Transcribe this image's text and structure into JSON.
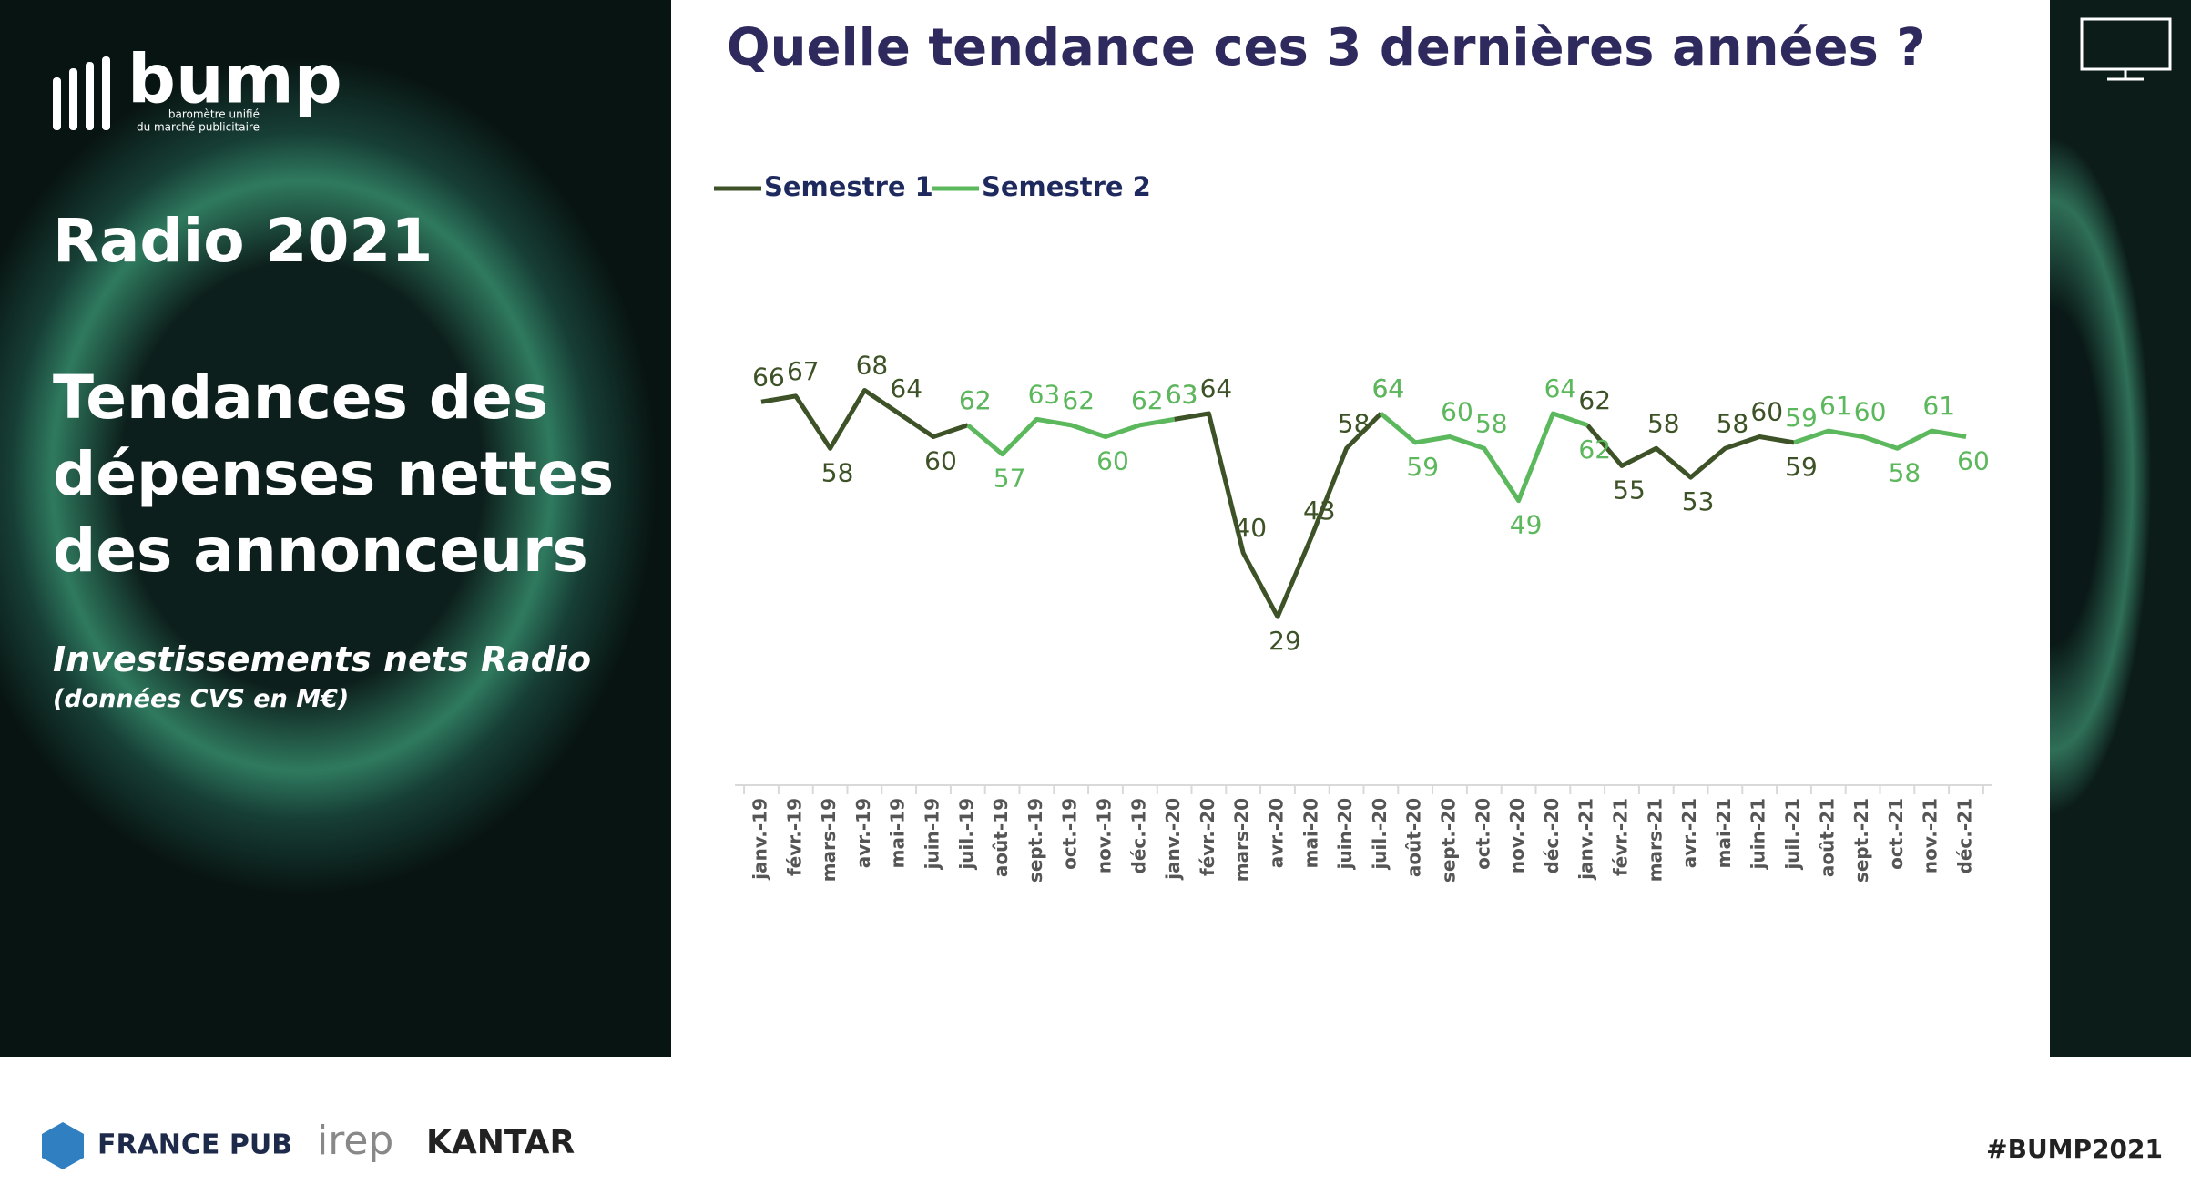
{
  "sidebar": {
    "logo": "bump",
    "logo_tagline": [
      "baromètre unifié",
      "du marché publicitaire"
    ],
    "heading": "Radio 2021",
    "title_lines": [
      "Tendances des",
      "dépenses nettes",
      "des annonceurs"
    ],
    "subtitle": "Investissements nets Radio",
    "note": "(données CVS en M€)"
  },
  "footer": {
    "logos": [
      "FRANCE PUB",
      "irep",
      "KANTAR"
    ],
    "hashtag": "#BUMP2021"
  },
  "chart_data": {
    "type": "line",
    "title": "Quelle tendance ces 3 dernières années ?",
    "categories": [
      "janv.-19",
      "févr.-19",
      "mars-19",
      "avr.-19",
      "mai-19",
      "juin-19",
      "juil.-19",
      "août-19",
      "sept.-19",
      "oct.-19",
      "nov.-19",
      "déc.-19",
      "janv.-20",
      "févr.-20",
      "mars-20",
      "avr.-20",
      "mai-20",
      "juin-20",
      "juil.-20",
      "août-20",
      "sept.-20",
      "oct.-20",
      "nov.-20",
      "déc.-20",
      "janv.-21",
      "févr.-21",
      "mars-21",
      "avr.-21",
      "mai-21",
      "juin-21",
      "juil.-21",
      "août-21",
      "sept.-21",
      "oct.-21",
      "nov.-21",
      "déc.-21"
    ],
    "series": [
      {
        "name": "Semestre 1",
        "color": "#3d5226",
        "values": [
          66,
          67,
          58,
          68,
          64,
          60,
          62,
          null,
          null,
          null,
          null,
          null,
          63,
          64,
          40,
          29,
          43,
          58,
          64,
          null,
          null,
          null,
          null,
          null,
          62,
          55,
          58,
          53,
          58,
          60,
          59,
          null,
          null,
          null,
          null,
          null
        ]
      },
      {
        "name": "Semestre 2",
        "color": "#5cb85c",
        "values": [
          null,
          null,
          null,
          null,
          null,
          null,
          62,
          57,
          63,
          62,
          60,
          62,
          63,
          null,
          null,
          null,
          null,
          null,
          64,
          59,
          60,
          58,
          49,
          64,
          62,
          null,
          null,
          null,
          null,
          null,
          59,
          61,
          60,
          58,
          61,
          60
        ]
      }
    ],
    "ylim": [
      0,
      80
    ],
    "legend": "top-left"
  }
}
